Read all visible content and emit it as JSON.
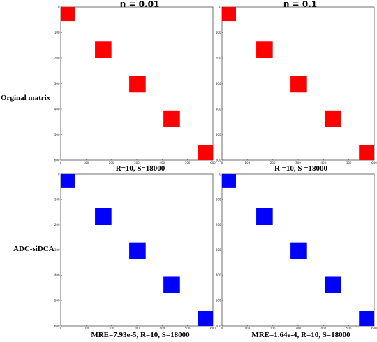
{
  "column_titles": [
    "η = 0.01",
    "η = 0.1"
  ],
  "row_labels": [
    "Orginal matrix",
    "ADC-siDCA"
  ],
  "chart_data": [
    {
      "type": "heatmap",
      "row": "Orginal matrix",
      "column": "η = 0.01",
      "caption": "R=10, S=18000",
      "color": "#ff0000",
      "xlim": [
        0,
        600
      ],
      "ylim": [
        0,
        600
      ],
      "xticks": [
        0,
        100,
        200,
        300,
        400,
        500,
        600
      ],
      "yticks": [
        0,
        100,
        200,
        300,
        400,
        500,
        600
      ],
      "blocks": [
        {
          "x0": 0,
          "x1": 55,
          "y0": 0,
          "y1": 55
        },
        {
          "x0": 135,
          "x1": 200,
          "y0": 135,
          "y1": 200
        },
        {
          "x0": 270,
          "x1": 335,
          "y0": 270,
          "y1": 335
        },
        {
          "x0": 405,
          "x1": 470,
          "y0": 405,
          "y1": 470
        },
        {
          "x0": 540,
          "x1": 600,
          "y0": 540,
          "y1": 600
        }
      ]
    },
    {
      "type": "heatmap",
      "row": "Orginal matrix",
      "column": "η = 0.1",
      "caption": "R =10, S =18000",
      "color": "#ff0000",
      "xlim": [
        0,
        600
      ],
      "ylim": [
        0,
        600
      ],
      "xticks": [
        0,
        100,
        200,
        300,
        400,
        500,
        600
      ],
      "yticks": [
        0,
        100,
        200,
        300,
        400,
        500,
        600
      ],
      "blocks": [
        {
          "x0": 0,
          "x1": 55,
          "y0": 0,
          "y1": 55
        },
        {
          "x0": 135,
          "x1": 200,
          "y0": 135,
          "y1": 200
        },
        {
          "x0": 270,
          "x1": 335,
          "y0": 270,
          "y1": 335
        },
        {
          "x0": 405,
          "x1": 470,
          "y0": 405,
          "y1": 470
        },
        {
          "x0": 540,
          "x1": 600,
          "y0": 540,
          "y1": 600
        }
      ]
    },
    {
      "type": "heatmap",
      "row": "ADC-siDCA",
      "column": "η = 0.01",
      "caption": "MRE=7.93e-5, R=10, S=18000",
      "color": "#0000ff",
      "xlim": [
        0,
        600
      ],
      "ylim": [
        0,
        600
      ],
      "xticks": [
        0,
        100,
        200,
        300,
        400,
        500,
        600
      ],
      "yticks": [
        0,
        100,
        200,
        300,
        400,
        500,
        600
      ],
      "blocks": [
        {
          "x0": 0,
          "x1": 55,
          "y0": 0,
          "y1": 55
        },
        {
          "x0": 135,
          "x1": 200,
          "y0": 135,
          "y1": 200
        },
        {
          "x0": 270,
          "x1": 335,
          "y0": 270,
          "y1": 335
        },
        {
          "x0": 405,
          "x1": 470,
          "y0": 405,
          "y1": 470
        },
        {
          "x0": 540,
          "x1": 600,
          "y0": 540,
          "y1": 600
        }
      ]
    },
    {
      "type": "heatmap",
      "row": "ADC-siDCA",
      "column": "η = 0.1",
      "caption": "MRE=1.64e-4, R=10, S=18000",
      "color": "#0000ff",
      "xlim": [
        0,
        600
      ],
      "ylim": [
        0,
        600
      ],
      "xticks": [
        0,
        100,
        200,
        300,
        400,
        500,
        600
      ],
      "yticks": [
        0,
        100,
        200,
        300,
        400,
        500,
        600
      ],
      "blocks": [
        {
          "x0": 0,
          "x1": 55,
          "y0": 0,
          "y1": 55
        },
        {
          "x0": 135,
          "x1": 200,
          "y0": 135,
          "y1": 200
        },
        {
          "x0": 270,
          "x1": 335,
          "y0": 270,
          "y1": 335
        },
        {
          "x0": 405,
          "x1": 470,
          "y0": 405,
          "y1": 470
        },
        {
          "x0": 540,
          "x1": 600,
          "y0": 540,
          "y1": 600
        }
      ]
    }
  ]
}
